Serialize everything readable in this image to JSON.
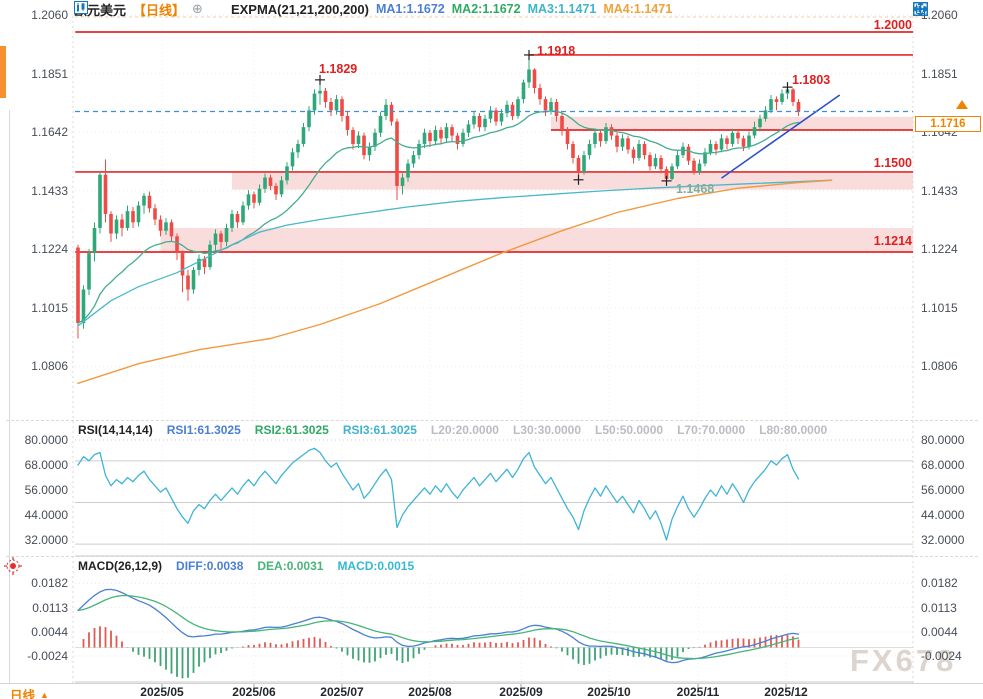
{
  "header": {
    "symbol": "欧元美元",
    "period": "【日线】",
    "indicator": "EXPMA(21,21,200,200)",
    "ma": [
      {
        "label": "MA1:1.1672",
        "color": "#4a7fd4"
      },
      {
        "label": "MA2:1.1672",
        "color": "#2faa64"
      },
      {
        "label": "MA3:1.1471",
        "color": "#3fb3cf"
      },
      {
        "label": "MA4:1.1471",
        "color": "#f0a23c"
      }
    ]
  },
  "toolbar": {
    "icons": [
      "move-icon",
      "axis-scale-icon",
      "scroll-right-icon",
      "go-latest-icon"
    ],
    "color": "#1878be"
  },
  "main_chart": {
    "y_axis": [
      1.206,
      1.1851,
      1.1642,
      1.1433,
      1.1224,
      1.1015,
      1.0806
    ],
    "current_price": "1.1716",
    "annotations": [
      {
        "text": "1.2000"
      },
      {
        "text": "1.1918"
      },
      {
        "text": "1.1829"
      },
      {
        "text": "1.1803"
      },
      {
        "text": "1.1500"
      },
      {
        "text": "1.1214"
      },
      {
        "text": "1.1468"
      }
    ],
    "colors": {
      "up": "#2fa879",
      "down": "#ef4a45",
      "level_line": "#e02b2b",
      "band_fill": "#f8d3d3",
      "price_line": "#3e8ede",
      "trend_line": "#2b50c8",
      "ema_fast": "#43ad91",
      "ma_cyan": "#49b8c8",
      "ma_orange": "#f2993f"
    }
  },
  "rsi": {
    "title": "RSI(14,14,14)",
    "lines": [
      {
        "label": "RSI1:61.3025",
        "color": "#4a7fd4"
      },
      {
        "label": "RSI2:61.3025",
        "color": "#2faa64"
      },
      {
        "label": "RSI3:61.3025",
        "color": "#3fb3cf"
      }
    ],
    "levels": [
      "L20:20.0000",
      "L30:30.0000",
      "L50:50.0000",
      "L70:70.0000",
      "L80:80.0000"
    ],
    "y_axis": [
      80,
      68,
      56,
      44,
      32
    ],
    "line_color": "#3fb3d8"
  },
  "macd": {
    "title": "MACD(26,12,9)",
    "diff_label": "DIFF:0.0038",
    "dea_label": "DEA:0.0031",
    "macd_label": "MACD:0.0015",
    "diff_color": "#4a7fd4",
    "dea_color": "#46b579",
    "macd_color": "#36b8d4",
    "y_axis": [
      0.0182,
      0.0113,
      0.0044,
      -0.0024
    ]
  },
  "footer": {
    "timeframe": "日线",
    "arrow": "▲"
  },
  "watermark": "FX678",
  "chart_data": {
    "type": "candlestick",
    "symbol": "EURUSD",
    "timeframe": "daily",
    "x_axis": {
      "labels": [
        "2025/05",
        "2025/06",
        "2025/07",
        "2025/08",
        "2025/09",
        "2025/10",
        "2025/11",
        "2025/12"
      ],
      "positions": [
        162,
        254,
        342,
        430,
        521,
        609,
        698,
        786
      ]
    },
    "candles": [
      [
        1.123,
        1.124,
        1.0905,
        1.096
      ],
      [
        1.096,
        1.1095,
        1.094,
        1.108
      ],
      [
        1.108,
        1.1225,
        1.106,
        1.121
      ],
      [
        1.121,
        1.132,
        1.118,
        1.13
      ],
      [
        1.13,
        1.15,
        1.128,
        1.149
      ],
      [
        1.149,
        1.1545,
        1.132,
        1.135
      ],
      [
        1.135,
        1.136,
        1.125,
        1.128
      ],
      [
        1.128,
        1.1345,
        1.126,
        1.133
      ],
      [
        1.133,
        1.135,
        1.127,
        1.13
      ],
      [
        1.13,
        1.138,
        1.129,
        1.136
      ],
      [
        1.136,
        1.1375,
        1.13,
        1.132
      ],
      [
        1.132,
        1.1395,
        1.1305,
        1.138
      ],
      [
        1.138,
        1.1425,
        1.135,
        1.1415
      ],
      [
        1.1415,
        1.143,
        1.1355,
        1.137
      ],
      [
        1.137,
        1.1385,
        1.131,
        1.133
      ],
      [
        1.133,
        1.1345,
        1.127,
        1.129
      ],
      [
        1.129,
        1.1335,
        1.1275,
        1.132
      ],
      [
        1.132,
        1.133,
        1.125,
        1.127
      ],
      [
        1.127,
        1.128,
        1.1185,
        1.121
      ],
      [
        1.121,
        1.122,
        1.107,
        1.113
      ],
      [
        1.113,
        1.115,
        1.104,
        1.108
      ],
      [
        1.108,
        1.116,
        1.1065,
        1.115
      ],
      [
        1.115,
        1.1205,
        1.113,
        1.119
      ],
      [
        1.119,
        1.12,
        1.1135,
        1.116
      ],
      [
        1.116,
        1.1255,
        1.115,
        1.124
      ],
      [
        1.124,
        1.1295,
        1.122,
        1.128
      ],
      [
        1.128,
        1.129,
        1.1225,
        1.125
      ],
      [
        1.125,
        1.1315,
        1.1235,
        1.13
      ],
      [
        1.13,
        1.1365,
        1.1285,
        1.135
      ],
      [
        1.135,
        1.136,
        1.13,
        1.132
      ],
      [
        1.132,
        1.1395,
        1.131,
        1.138
      ],
      [
        1.138,
        1.1435,
        1.1365,
        1.142
      ],
      [
        1.142,
        1.143,
        1.137,
        1.139
      ],
      [
        1.139,
        1.1455,
        1.138,
        1.144
      ],
      [
        1.144,
        1.1495,
        1.1425,
        1.148
      ],
      [
        1.148,
        1.149,
        1.1435,
        1.145
      ],
      [
        1.145,
        1.146,
        1.14,
        1.142
      ],
      [
        1.142,
        1.1485,
        1.141,
        1.147
      ],
      [
        1.147,
        1.1535,
        1.1455,
        1.152
      ],
      [
        1.152,
        1.1585,
        1.1505,
        1.157
      ],
      [
        1.157,
        1.1615,
        1.155,
        1.16
      ],
      [
        1.16,
        1.1675,
        1.159,
        1.166
      ],
      [
        1.166,
        1.1735,
        1.1645,
        1.172
      ],
      [
        1.172,
        1.1795,
        1.1705,
        1.178
      ],
      [
        1.178,
        1.1829,
        1.174,
        1.179
      ],
      [
        1.179,
        1.18,
        1.173,
        1.175
      ],
      [
        1.175,
        1.1765,
        1.17,
        1.172
      ],
      [
        1.172,
        1.1775,
        1.1705,
        1.176
      ],
      [
        1.176,
        1.177,
        1.168,
        1.17
      ],
      [
        1.17,
        1.1715,
        1.163,
        1.165
      ],
      [
        1.165,
        1.166,
        1.158,
        1.16
      ],
      [
        1.16,
        1.1645,
        1.1585,
        1.163
      ],
      [
        1.163,
        1.164,
        1.1545,
        1.156
      ],
      [
        1.156,
        1.1605,
        1.154,
        1.159
      ],
      [
        1.159,
        1.1655,
        1.1575,
        1.164
      ],
      [
        1.164,
        1.1715,
        1.1625,
        1.17
      ],
      [
        1.17,
        1.176,
        1.1685,
        1.174
      ],
      [
        1.174,
        1.175,
        1.1665,
        1.168
      ],
      [
        1.168,
        1.169,
        1.14,
        1.145
      ],
      [
        1.145,
        1.1495,
        1.142,
        1.148
      ],
      [
        1.148,
        1.1545,
        1.1465,
        1.153
      ],
      [
        1.153,
        1.1575,
        1.1515,
        1.156
      ],
      [
        1.156,
        1.1615,
        1.1545,
        1.16
      ],
      [
        1.16,
        1.1655,
        1.1585,
        1.164
      ],
      [
        1.164,
        1.165,
        1.159,
        1.161
      ],
      [
        1.161,
        1.1665,
        1.1595,
        1.165
      ],
      [
        1.165,
        1.166,
        1.16,
        1.162
      ],
      [
        1.162,
        1.1675,
        1.1605,
        1.166
      ],
      [
        1.166,
        1.167,
        1.161,
        1.163
      ],
      [
        1.163,
        1.164,
        1.158,
        1.16
      ],
      [
        1.16,
        1.1655,
        1.159,
        1.164
      ],
      [
        1.164,
        1.1685,
        1.1625,
        1.167
      ],
      [
        1.167,
        1.1715,
        1.1655,
        1.17
      ],
      [
        1.17,
        1.171,
        1.1645,
        1.166
      ],
      [
        1.166,
        1.1705,
        1.1645,
        1.169
      ],
      [
        1.169,
        1.1735,
        1.1675,
        1.172
      ],
      [
        1.172,
        1.173,
        1.1665,
        1.168
      ],
      [
        1.168,
        1.1725,
        1.1665,
        1.171
      ],
      [
        1.171,
        1.1755,
        1.1695,
        1.174
      ],
      [
        1.174,
        1.175,
        1.1685,
        1.17
      ],
      [
        1.17,
        1.177,
        1.169,
        1.176
      ],
      [
        1.176,
        1.183,
        1.1745,
        1.182
      ],
      [
        1.182,
        1.1918,
        1.18,
        1.1866
      ],
      [
        1.1866,
        1.187,
        1.178,
        1.18
      ],
      [
        1.18,
        1.1815,
        1.174,
        1.176
      ],
      [
        1.176,
        1.177,
        1.17,
        1.172
      ],
      [
        1.172,
        1.1765,
        1.1705,
        1.175
      ],
      [
        1.175,
        1.176,
        1.168,
        1.17
      ],
      [
        1.17,
        1.171,
        1.163,
        1.165
      ],
      [
        1.165,
        1.166,
        1.158,
        1.16
      ],
      [
        1.16,
        1.161,
        1.153,
        1.155
      ],
      [
        1.155,
        1.156,
        1.1472,
        1.15
      ],
      [
        1.15,
        1.1575,
        1.149,
        1.156
      ],
      [
        1.156,
        1.1615,
        1.1545,
        1.16
      ],
      [
        1.16,
        1.1655,
        1.1585,
        1.164
      ],
      [
        1.164,
        1.165,
        1.159,
        1.161
      ],
      [
        1.161,
        1.1675,
        1.16,
        1.166
      ],
      [
        1.166,
        1.167,
        1.1615,
        1.163
      ],
      [
        1.163,
        1.164,
        1.157,
        1.159
      ],
      [
        1.159,
        1.1635,
        1.1575,
        1.162
      ],
      [
        1.162,
        1.163,
        1.1565,
        1.158
      ],
      [
        1.158,
        1.159,
        1.153,
        1.155
      ],
      [
        1.155,
        1.1615,
        1.154,
        1.16
      ],
      [
        1.16,
        1.161,
        1.1545,
        1.156
      ],
      [
        1.156,
        1.157,
        1.1505,
        1.152
      ],
      [
        1.152,
        1.1565,
        1.151,
        1.155
      ],
      [
        1.155,
        1.156,
        1.1495,
        1.151
      ],
      [
        1.151,
        1.152,
        1.1468,
        1.1475
      ],
      [
        1.1475,
        1.153,
        1.147,
        1.152
      ],
      [
        1.152,
        1.1575,
        1.151,
        1.156
      ],
      [
        1.156,
        1.1605,
        1.155,
        1.159
      ],
      [
        1.159,
        1.16,
        1.1525,
        1.154
      ],
      [
        1.154,
        1.155,
        1.149,
        1.15
      ],
      [
        1.15,
        1.1545,
        1.149,
        1.153
      ],
      [
        1.153,
        1.1585,
        1.152,
        1.157
      ],
      [
        1.157,
        1.1615,
        1.156,
        1.16
      ],
      [
        1.16,
        1.161,
        1.156,
        1.158
      ],
      [
        1.158,
        1.1635,
        1.157,
        1.162
      ],
      [
        1.162,
        1.163,
        1.158,
        1.16
      ],
      [
        1.16,
        1.1655,
        1.159,
        1.164
      ],
      [
        1.164,
        1.165,
        1.16,
        1.162
      ],
      [
        1.162,
        1.163,
        1.1575,
        1.159
      ],
      [
        1.159,
        1.1645,
        1.158,
        1.163
      ],
      [
        1.163,
        1.168,
        1.162,
        1.166
      ],
      [
        1.166,
        1.1705,
        1.1645,
        1.169
      ],
      [
        1.169,
        1.1735,
        1.168,
        1.172
      ],
      [
        1.172,
        1.1775,
        1.171,
        1.176
      ],
      [
        1.176,
        1.177,
        1.172,
        1.175
      ],
      [
        1.175,
        1.1795,
        1.174,
        1.178
      ],
      [
        1.178,
        1.1803,
        1.176,
        1.1795
      ],
      [
        1.1795,
        1.18,
        1.1735,
        1.175
      ],
      [
        1.175,
        1.176,
        1.17,
        1.1716
      ]
    ],
    "levels": [
      {
        "price": 1.2,
        "from_index": -0.5
      },
      {
        "price": 1.1918,
        "from_index": 82
      },
      {
        "price": 1.165,
        "from_index": 86
      },
      {
        "price": 1.15,
        "from_index": -0.5
      },
      {
        "price": 1.1214,
        "from_index": -0.5
      }
    ],
    "bands": [
      {
        "from_index": 86,
        "top": 1.1697,
        "bottom": 1.165
      },
      {
        "from_index": 28,
        "top": 1.1498,
        "bottom": 1.1437
      },
      {
        "from_index": 15,
        "top": 1.13,
        "bottom": 1.1214
      }
    ],
    "current_price_line": 1.1716,
    "trend_line": [
      [
        117,
        1.1478
      ],
      [
        138.5,
        1.1775
      ]
    ],
    "markers": [
      {
        "index": 44,
        "price": 1.1829,
        "kind": "high"
      },
      {
        "index": 82,
        "price": 1.1918,
        "kind": "high"
      },
      {
        "index": 129,
        "price": 1.1803,
        "kind": "high"
      },
      {
        "index": 91,
        "price": 1.1472,
        "kind": "low"
      },
      {
        "index": 107,
        "price": 1.1468,
        "kind": "low"
      }
    ],
    "ema_fast_period": 21,
    "ma_cyan_points": [
      [
        0,
        1.095
      ],
      [
        6,
        1.104
      ],
      [
        11,
        1.109
      ],
      [
        18,
        1.114
      ],
      [
        28,
        1.124
      ],
      [
        33,
        1.1285
      ],
      [
        38,
        1.131
      ],
      [
        44,
        1.133
      ],
      [
        51,
        1.135
      ],
      [
        60,
        1.1375
      ],
      [
        69,
        1.1395
      ],
      [
        77,
        1.1408
      ],
      [
        86,
        1.142
      ],
      [
        95,
        1.1432
      ],
      [
        104,
        1.1442
      ],
      [
        113,
        1.145
      ],
      [
        122,
        1.1458
      ],
      [
        131,
        1.1465
      ],
      [
        137,
        1.1471
      ]
    ],
    "ma_orange_points": [
      [
        0,
        1.0745
      ],
      [
        11,
        1.0815
      ],
      [
        22,
        1.0865
      ],
      [
        35,
        1.0905
      ],
      [
        44,
        1.0955
      ],
      [
        55,
        1.103
      ],
      [
        66,
        1.112
      ],
      [
        77,
        1.121
      ],
      [
        88,
        1.129
      ],
      [
        98,
        1.1355
      ],
      [
        109,
        1.1405
      ],
      [
        120,
        1.1442
      ],
      [
        131,
        1.1462
      ],
      [
        137,
        1.147
      ]
    ],
    "rsi": [
      68,
      72,
      70,
      73,
      74,
      63,
      58,
      61,
      59,
      62,
      60,
      63,
      65,
      61,
      58,
      55,
      57,
      52,
      47,
      43,
      40,
      46,
      49,
      47,
      51,
      54,
      51,
      54,
      57,
      54,
      58,
      61,
      58,
      62,
      65,
      62,
      59,
      63,
      66,
      69,
      71,
      73,
      75,
      76,
      74,
      70,
      67,
      69,
      64,
      60,
      56,
      59,
      52,
      55,
      59,
      63,
      66,
      61,
      38,
      44,
      48,
      51,
      54,
      57,
      54,
      58,
      55,
      59,
      55,
      52,
      56,
      59,
      62,
      58,
      61,
      64,
      60,
      63,
      66,
      62,
      66,
      71,
      74,
      67,
      63,
      59,
      62,
      57,
      52,
      47,
      43,
      37,
      46,
      52,
      57,
      53,
      58,
      54,
      50,
      53,
      49,
      45,
      51,
      47,
      42,
      46,
      40,
      32,
      42,
      48,
      53,
      47,
      43,
      47,
      52,
      56,
      53,
      58,
      54,
      59,
      55,
      50,
      56,
      60,
      63,
      66,
      70,
      68,
      71,
      73,
      66,
      61.3
    ],
    "macd_diff": [
      0.0105,
      0.012,
      0.0135,
      0.0148,
      0.0158,
      0.0164,
      0.0165,
      0.0162,
      0.0156,
      0.0148,
      0.014,
      0.0133,
      0.0127,
      0.012,
      0.011,
      0.0098,
      0.0085,
      0.007,
      0.0055,
      0.0042,
      0.0032,
      0.003,
      0.0032,
      0.0033,
      0.0035,
      0.0038,
      0.0038,
      0.004,
      0.0043,
      0.0044,
      0.0046,
      0.0049,
      0.005,
      0.0053,
      0.0057,
      0.0058,
      0.0057,
      0.0058,
      0.0061,
      0.0066,
      0.007,
      0.0075,
      0.008,
      0.0085,
      0.0086,
      0.0083,
      0.0078,
      0.0074,
      0.0068,
      0.006,
      0.0051,
      0.0044,
      0.0036,
      0.003,
      0.0027,
      0.0028,
      0.003,
      0.0029,
      0.0015,
      0.0006,
      0.0003,
      0.0004,
      0.0008,
      0.0013,
      0.0016,
      0.002,
      0.0022,
      0.0025,
      0.0026,
      0.0025,
      0.0026,
      0.0029,
      0.0033,
      0.0034,
      0.0036,
      0.0039,
      0.0039,
      0.0041,
      0.0044,
      0.0044,
      0.0047,
      0.0053,
      0.006,
      0.0063,
      0.0062,
      0.0058,
      0.0055,
      0.0052,
      0.0046,
      0.0038,
      0.0028,
      0.0016,
      0.0008,
      0.0004,
      0.0004,
      0.0003,
      0.0004,
      0.0003,
      0.0,
      -0.0003,
      -0.0007,
      -0.0012,
      -0.0015,
      -0.0018,
      -0.0023,
      -0.0027,
      -0.0033,
      -0.004,
      -0.0043,
      -0.0042,
      -0.0037,
      -0.0033,
      -0.0032,
      -0.003,
      -0.0026,
      -0.0021,
      -0.0016,
      -0.0013,
      -0.0009,
      -0.0005,
      -0.0001,
      0.0002,
      0.0004,
      0.0008,
      0.0013,
      0.0018,
      0.0024,
      0.0029,
      0.0033,
      0.0038,
      0.004,
      0.0038
    ]
  }
}
